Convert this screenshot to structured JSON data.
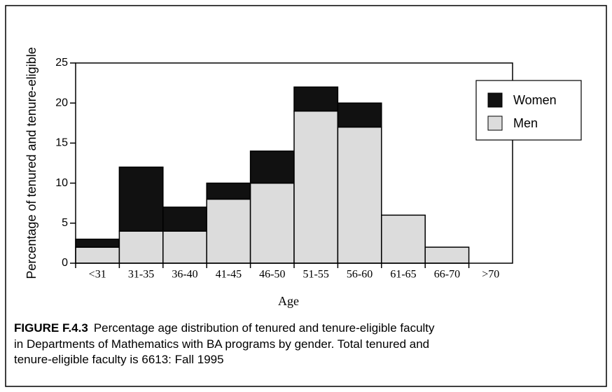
{
  "chart_data": {
    "type": "stacked_bar",
    "x_label": "Age",
    "y_label": "Percentage of tenured and tenure-eligible",
    "categories": [
      "<31",
      "31-35",
      "36-40",
      "41-45",
      "46-50",
      "51-55",
      "56-60",
      "61-65",
      "66-70",
      ">70"
    ],
    "series": [
      {
        "name": "Men",
        "color": "#dcdcdc",
        "values": [
          2,
          4,
          4,
          8,
          10,
          19,
          17,
          6,
          2,
          0
        ]
      },
      {
        "name": "Women",
        "color": "#111111",
        "values": [
          1,
          8,
          3,
          2,
          4,
          3,
          3,
          0,
          0,
          0
        ]
      }
    ],
    "ylim": [
      0,
      25
    ],
    "yticks": [
      0,
      5,
      10,
      15,
      20,
      25
    ],
    "legend": "upper right"
  },
  "caption": {
    "label": "FIGURE F.4.3",
    "lines": [
      "Percentage age distribution of tenured and tenure-eligible faculty",
      "in Departments of Mathematics with BA programs by gender.  Total tenured and",
      "tenure-eligible faculty is 6613:  Fall 1995"
    ]
  }
}
